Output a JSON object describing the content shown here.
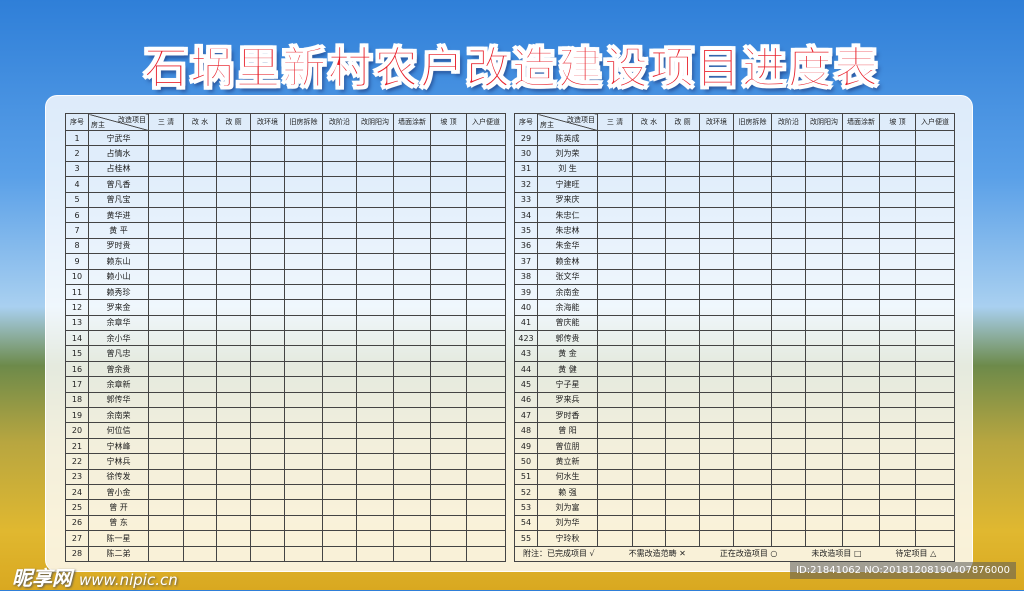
{
  "title": "石埚里新村农户改造建设项目进度表",
  "headers": {
    "no": "序号",
    "project": "改造项目",
    "owner": "房主",
    "cols": [
      "三 清",
      "改 水",
      "改 厕",
      "改环境",
      "旧房拆除",
      "改阶沿",
      "改阴阳沟",
      "墙面涂新",
      "坡 顶",
      "入户便道"
    ]
  },
  "left_rows": [
    [
      "1",
      "宁武华"
    ],
    [
      "2",
      "占情水"
    ],
    [
      "3",
      "占桂林"
    ],
    [
      "4",
      "曾凡香"
    ],
    [
      "5",
      "曾凡宝"
    ],
    [
      "6",
      "黄华进"
    ],
    [
      "7",
      "黄 平"
    ],
    [
      "8",
      "罗时贵"
    ],
    [
      "9",
      "赖东山"
    ],
    [
      "10",
      "赖小山"
    ],
    [
      "11",
      "赖秀珍"
    ],
    [
      "12",
      "罗来金"
    ],
    [
      "13",
      "余章华"
    ],
    [
      "14",
      "余小华"
    ],
    [
      "15",
      "曾凡忠"
    ],
    [
      "16",
      "曾余贵"
    ],
    [
      "17",
      "余章新"
    ],
    [
      "18",
      "郭传华"
    ],
    [
      "19",
      "余南荣"
    ],
    [
      "20",
      "何位信"
    ],
    [
      "21",
      "宁林峰"
    ],
    [
      "22",
      "宁林兵"
    ],
    [
      "23",
      "徐传发"
    ],
    [
      "24",
      "曾小金"
    ],
    [
      "25",
      "曾 开"
    ],
    [
      "26",
      "曾 东"
    ],
    [
      "27",
      "陈一星"
    ],
    [
      "28",
      "陈二弟"
    ]
  ],
  "right_rows": [
    [
      "29",
      "陈英成"
    ],
    [
      "30",
      "刘为荣"
    ],
    [
      "31",
      "刘 生"
    ],
    [
      "32",
      "宁建旺"
    ],
    [
      "33",
      "罗来庆"
    ],
    [
      "34",
      "朱忠仁"
    ],
    [
      "35",
      "朱忠林"
    ],
    [
      "36",
      "朱金华"
    ],
    [
      "37",
      "赖金林"
    ],
    [
      "38",
      "张文华"
    ],
    [
      "39",
      "余南金"
    ],
    [
      "40",
      "余海能"
    ],
    [
      "41",
      "曾庆能"
    ],
    [
      "423",
      "郭传贵"
    ],
    [
      "43",
      "黄 金"
    ],
    [
      "44",
      "黄 健"
    ],
    [
      "45",
      "宁子星"
    ],
    [
      "46",
      "罗来兵"
    ],
    [
      "47",
      "罗时香"
    ],
    [
      "48",
      "曾 阳"
    ],
    [
      "49",
      "曾位朋"
    ],
    [
      "50",
      "黄立新"
    ],
    [
      "51",
      "何水生"
    ],
    [
      "52",
      "赖 强"
    ],
    [
      "53",
      "刘为富"
    ],
    [
      "54",
      "刘为华"
    ],
    [
      "55",
      "宁玲秋"
    ]
  ],
  "legend": [
    "附注：已完成项目 √",
    "不需改造范畴 ✕",
    "正在改造项目 ○",
    "未改造项目 □",
    "待定项目 △"
  ],
  "watermark": {
    "logo": "昵享网",
    "url": "www.nipic.cn",
    "id": "ID:21841062 NO:20181208190407876000"
  },
  "colors": {
    "title": "#e8202a",
    "sky": "#2f7fd8"
  }
}
